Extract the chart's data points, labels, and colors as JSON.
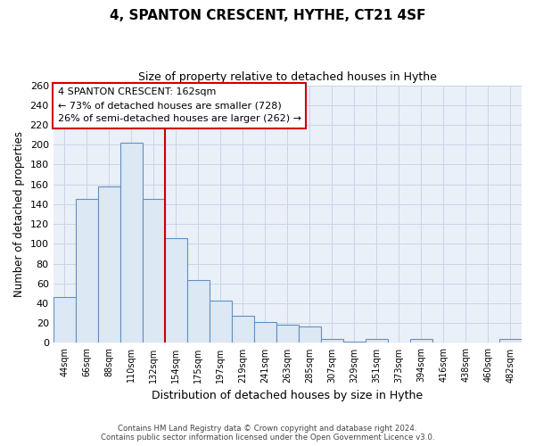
{
  "title": "4, SPANTON CRESCENT, HYTHE, CT21 4SF",
  "subtitle": "Size of property relative to detached houses in Hythe",
  "xlabel": "Distribution of detached houses by size in Hythe",
  "ylabel": "Number of detached properties",
  "bar_labels": [
    "44sqm",
    "66sqm",
    "88sqm",
    "110sqm",
    "132sqm",
    "154sqm",
    "175sqm",
    "197sqm",
    "219sqm",
    "241sqm",
    "263sqm",
    "285sqm",
    "307sqm",
    "329sqm",
    "351sqm",
    "373sqm",
    "394sqm",
    "416sqm",
    "438sqm",
    "460sqm",
    "482sqm"
  ],
  "bar_values": [
    46,
    145,
    158,
    202,
    145,
    106,
    63,
    43,
    27,
    21,
    18,
    17,
    4,
    1,
    4,
    0,
    4,
    0,
    0,
    0,
    4
  ],
  "bar_color": "#dde8f5",
  "bar_edge_color": "#6090c0",
  "reference_line_color": "#cc0000",
  "ylim": [
    0,
    260
  ],
  "yticks": [
    0,
    20,
    40,
    60,
    80,
    100,
    120,
    140,
    160,
    180,
    200,
    220,
    240,
    260
  ],
  "annotation_title": "4 SPANTON CRESCENT: 162sqm",
  "annotation_line1": "← 73% of detached houses are smaller (728)",
  "annotation_line2": "26% of semi-detached houses are larger (262) →",
  "annotation_box_color": "#ffffff",
  "annotation_box_edge": "#cc0000",
  "footer_line1": "Contains HM Land Registry data © Crown copyright and database right 2024.",
  "footer_line2": "Contains public sector information licensed under the Open Government Licence v3.0.",
  "plot_bg_color": "#eaf0f8",
  "fig_bg_color": "#ffffff",
  "grid_color": "#c8d4e8"
}
